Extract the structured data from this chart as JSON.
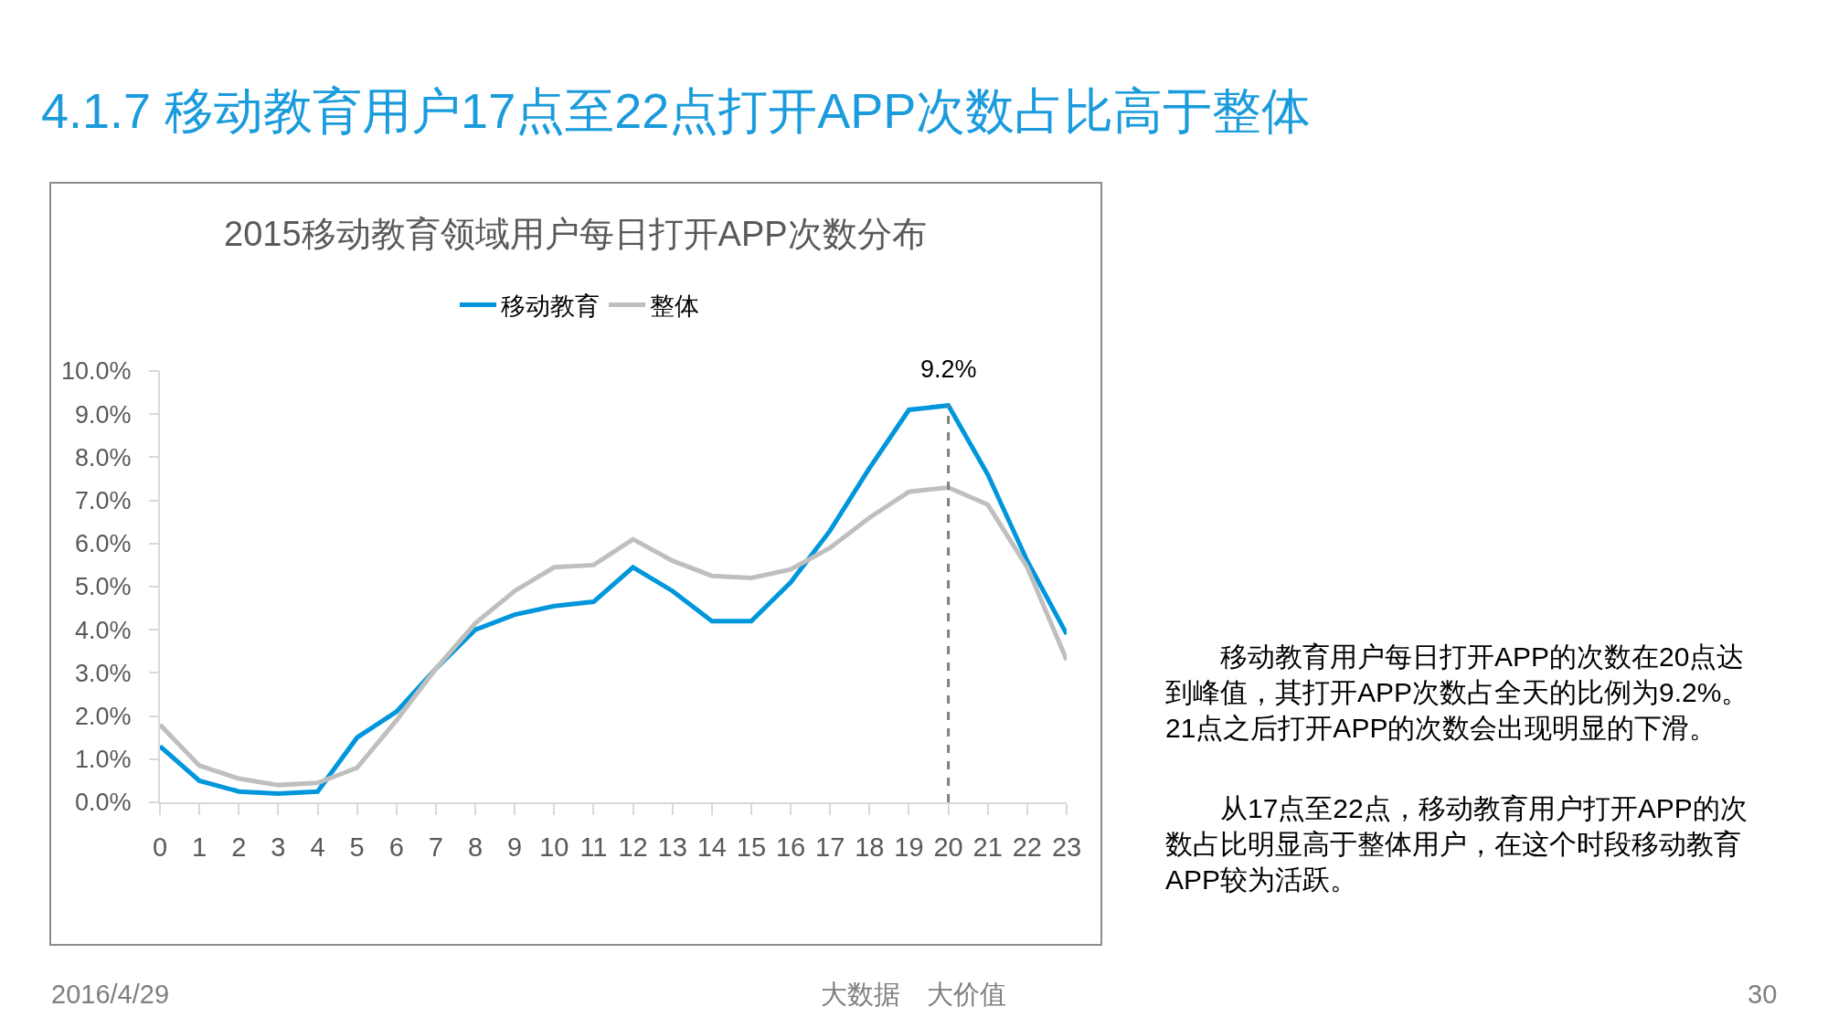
{
  "chart_data": {
    "type": "line",
    "title": "4.1.7 移动教育用户17点至22点打开APP次数占比高于整体",
    "subtitle": "2015移动教育领域用户每日打开APP次数分布",
    "x": [
      0,
      1,
      2,
      3,
      4,
      5,
      6,
      7,
      8,
      9,
      10,
      11,
      12,
      13,
      14,
      15,
      16,
      17,
      18,
      19,
      20,
      21,
      22,
      23
    ],
    "xlim": [
      0,
      23
    ],
    "xticks": [
      0,
      1,
      2,
      3,
      4,
      5,
      6,
      7,
      8,
      9,
      10,
      11,
      12,
      13,
      14,
      15,
      16,
      17,
      18,
      19,
      20,
      21,
      22,
      23
    ],
    "ylim": [
      0,
      10
    ],
    "yticks": [
      {
        "value": 0,
        "label": "0.0%"
      },
      {
        "value": 1,
        "label": "1.0%"
      },
      {
        "value": 2,
        "label": "2.0%"
      },
      {
        "value": 3,
        "label": "3.0%"
      },
      {
        "value": 4,
        "label": "4.0%"
      },
      {
        "value": 5,
        "label": "5.0%"
      },
      {
        "value": 6,
        "label": "6.0%"
      },
      {
        "value": 7,
        "label": "7.0%"
      },
      {
        "value": 8,
        "label": "8.0%"
      },
      {
        "value": 9,
        "label": "9.0%"
      },
      {
        "value": 10,
        "label": "10.0%"
      }
    ],
    "series": [
      {
        "name": "移动教育",
        "color": "#0096dc",
        "values": [
          1.3,
          0.5,
          0.25,
          0.2,
          0.25,
          1.5,
          2.1,
          3.1,
          4.0,
          4.35,
          4.55,
          4.65,
          5.45,
          4.9,
          4.2,
          4.2,
          5.1,
          6.3,
          7.75,
          9.1,
          9.2,
          7.6,
          5.6,
          3.9
        ],
        "value_labels": [
          null,
          null,
          null,
          null,
          null,
          null,
          null,
          null,
          null,
          null,
          null,
          null,
          null,
          null,
          null,
          null,
          null,
          null,
          null,
          null,
          "9.2%",
          null,
          null,
          null
        ]
      },
      {
        "name": "整体",
        "color": "#bfbfbf",
        "values": [
          1.8,
          0.85,
          0.55,
          0.4,
          0.45,
          0.8,
          1.9,
          3.1,
          4.15,
          4.9,
          5.45,
          5.5,
          6.1,
          5.6,
          5.25,
          5.2,
          5.4,
          5.9,
          6.6,
          7.2,
          7.3,
          6.9,
          5.45,
          3.3
        ]
      }
    ],
    "ref_lines": [
      {
        "axis": "x",
        "value": 20,
        "color": "#7f7f7f",
        "line_style": "dashed"
      }
    ],
    "legend": "top",
    "annotations": [
      "移动教育用户每日打开APP的次数在20点达到峰值，其打开APP次数占全天的比例为9.2%。21点之后打开APP的次数会出现明显的下滑。",
      "从17点至22点，移动教育用户打开APP的次数占比明显高于整体用户，在这个时段移动教育APP较为活跃。",
      "2016/4/29",
      "大数据　大价值",
      "30"
    ]
  }
}
